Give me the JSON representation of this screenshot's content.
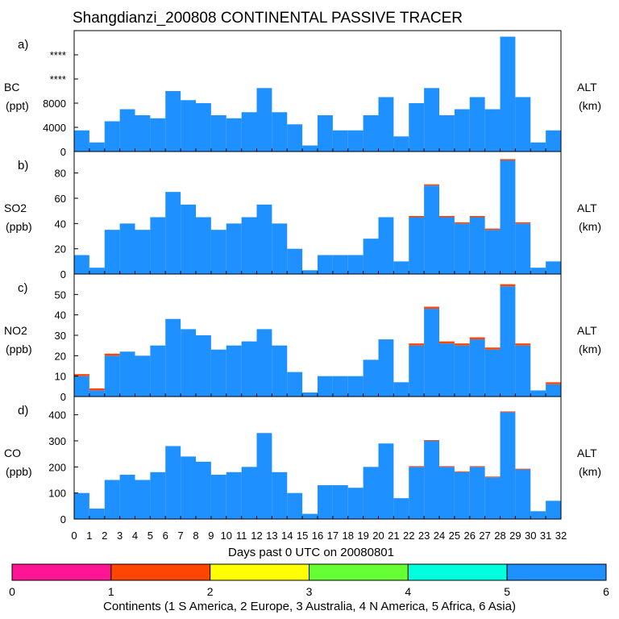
{
  "title": "Shangdianzi_200808 CONTINENTAL PASSIVE TRACER",
  "xlabel": "Days past 0 UTC on 20080801",
  "x_ticks": [
    "0",
    "1",
    "2",
    "3",
    "4",
    "5",
    "6",
    "7",
    "8",
    "9",
    "10",
    "11",
    "12",
    "13",
    "14",
    "15",
    "16",
    "17",
    "18",
    "19",
    "20",
    "21",
    "22",
    "23",
    "24",
    "25",
    "26",
    "27",
    "28",
    "29",
    "30",
    "31",
    "32"
  ],
  "colors": {
    "asia": "#1e90ff",
    "s_america": "#ff1493",
    "europe": "#ff4500",
    "australia": "#ffff00",
    "n_america": "#66ff33",
    "africa": "#00ffdd"
  },
  "colorbar": {
    "label": "Continents (1 S America, 2 Europe, 3 Australia, 4 N America, 5 Africa, 6 Asia)",
    "ticks": [
      "0",
      "1",
      "2",
      "3",
      "4",
      "5",
      "6"
    ],
    "segment_colors": [
      "#ff1493",
      "#ff4500",
      "#ffff00",
      "#66ff33",
      "#00ffdd",
      "#1e90ff"
    ]
  },
  "chart_data": [
    {
      "type": "area",
      "panel": "a)",
      "ylabel": "BC",
      "yunit": "(ppt)",
      "right_label": "ALT",
      "right_unit": "(km)",
      "y_tick_labels": [
        "0",
        "4000",
        "8000",
        "****",
        "****",
        "****"
      ],
      "ylim": [
        0,
        20000
      ],
      "x": [
        0,
        1,
        2,
        3,
        4,
        5,
        6,
        7,
        8,
        9,
        10,
        11,
        12,
        13,
        14,
        15,
        16,
        17,
        18,
        19,
        20,
        21,
        22,
        23,
        24,
        25,
        26,
        27,
        28,
        29,
        30,
        31
      ],
      "series": [
        {
          "values": [
            3500,
            1500,
            5000,
            7000,
            6000,
            5500,
            10000,
            8500,
            8000,
            6000,
            5500,
            6500,
            10500,
            6500,
            4500,
            1000,
            6000,
            3500,
            3500,
            6000,
            9000,
            2500,
            8000,
            10500,
            6000,
            7000,
            9000,
            7000,
            19000,
            9000,
            1500,
            3500
          ]
        }
      ]
    },
    {
      "type": "area",
      "panel": "b)",
      "ylabel": "SO2",
      "yunit": "(ppb)",
      "right_label": "ALT",
      "right_unit": "(km)",
      "y_tick_labels": [
        "0",
        "20",
        "40",
        "60",
        "80"
      ],
      "ylim": [
        0,
        97
      ],
      "x": [
        0,
        1,
        2,
        3,
        4,
        5,
        6,
        7,
        8,
        9,
        10,
        11,
        12,
        13,
        14,
        15,
        16,
        17,
        18,
        19,
        20,
        21,
        22,
        23,
        24,
        25,
        26,
        27,
        28,
        29,
        30,
        31
      ],
      "series": [
        {
          "values": [
            15,
            5,
            35,
            40,
            35,
            45,
            65,
            55,
            45,
            35,
            40,
            45,
            55,
            40,
            20,
            3,
            15,
            15,
            15,
            28,
            45,
            10,
            45,
            70,
            45,
            40,
            45,
            35,
            90,
            40,
            5,
            10
          ]
        },
        {
          "values": [
            0,
            0,
            0,
            0,
            0,
            0,
            0,
            0,
            0,
            0,
            0,
            0,
            0,
            0,
            0,
            0,
            0,
            0,
            0,
            0,
            0,
            0,
            1,
            1,
            1,
            1,
            1,
            1,
            1,
            1,
            0,
            0
          ]
        }
      ]
    },
    {
      "type": "area",
      "panel": "c)",
      "ylabel": "NO2",
      "yunit": "(ppb)",
      "right_label": "ALT",
      "right_unit": "(km)",
      "y_tick_labels": [
        "0",
        "10",
        "20",
        "30",
        "40",
        "50"
      ],
      "ylim": [
        0,
        60
      ],
      "x": [
        0,
        1,
        2,
        3,
        4,
        5,
        6,
        7,
        8,
        9,
        10,
        11,
        12,
        13,
        14,
        15,
        16,
        17,
        18,
        19,
        20,
        21,
        22,
        23,
        24,
        25,
        26,
        27,
        28,
        29,
        30,
        31
      ],
      "series": [
        {
          "values": [
            10,
            3,
            20,
            22,
            20,
            25,
            38,
            33,
            30,
            23,
            25,
            27,
            33,
            25,
            12,
            2,
            10,
            10,
            10,
            18,
            28,
            7,
            25,
            43,
            26,
            25,
            28,
            23,
            54,
            25,
            3,
            6
          ]
        },
        {
          "values": [
            1,
            1,
            1,
            0,
            0,
            0,
            0,
            0,
            0,
            0,
            0,
            0,
            0,
            0,
            0,
            0,
            0,
            0,
            0,
            0,
            0,
            0,
            1,
            1,
            1,
            1,
            1,
            1,
            1,
            1,
            0,
            1
          ]
        }
      ]
    },
    {
      "type": "area",
      "panel": "d)",
      "ylabel": "CO",
      "yunit": "(ppb)",
      "right_label": "ALT",
      "right_unit": "(km)",
      "y_tick_labels": [
        "0",
        "100",
        "200",
        "300",
        "400"
      ],
      "ylim": [
        0,
        470
      ],
      "x": [
        0,
        1,
        2,
        3,
        4,
        5,
        6,
        7,
        8,
        9,
        10,
        11,
        12,
        13,
        14,
        15,
        16,
        17,
        18,
        19,
        20,
        21,
        22,
        23,
        24,
        25,
        26,
        27,
        28,
        29,
        30,
        31
      ],
      "series": [
        {
          "values": [
            100,
            40,
            150,
            170,
            150,
            180,
            280,
            240,
            220,
            170,
            180,
            200,
            330,
            180,
            100,
            20,
            130,
            130,
            120,
            200,
            290,
            80,
            200,
            300,
            200,
            180,
            200,
            160,
            410,
            190,
            30,
            70
          ]
        },
        {
          "values": [
            0,
            0,
            0,
            0,
            0,
            0,
            0,
            0,
            0,
            0,
            0,
            0,
            0,
            0,
            0,
            0,
            0,
            0,
            0,
            0,
            0,
            0,
            3,
            3,
            3,
            3,
            3,
            3,
            3,
            3,
            0,
            0
          ]
        }
      ]
    }
  ]
}
